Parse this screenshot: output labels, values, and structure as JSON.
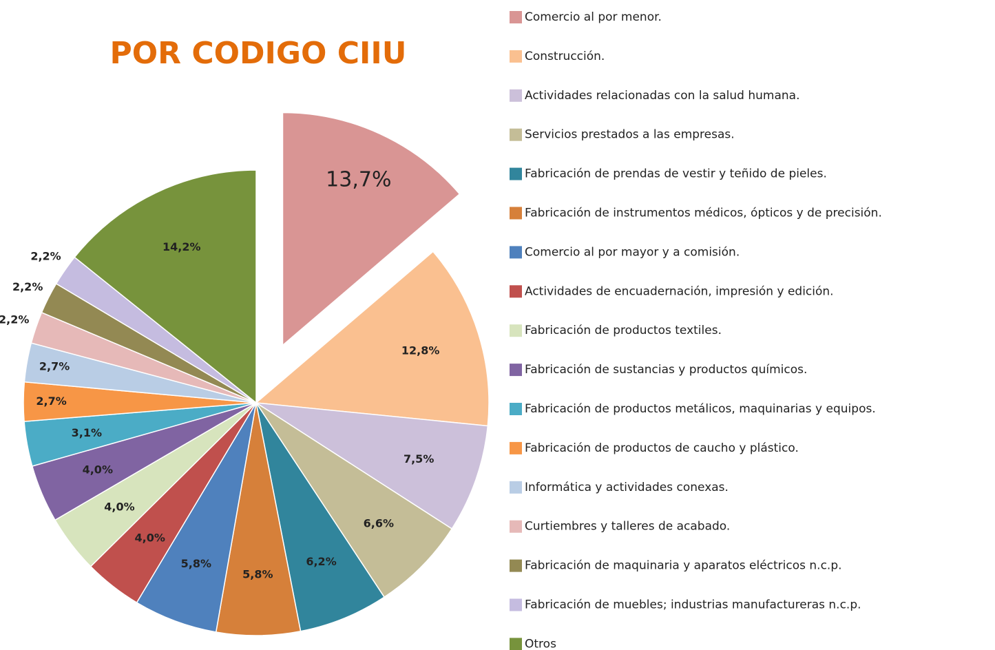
{
  "chart_data": {
    "type": "pie",
    "title": "POR CODIGO CIIU",
    "categories": [
      "Comercio al por menor.",
      "Construcción.",
      "Actividades relacionadas con la salud humana.",
      "Servicios prestados a las empresas.",
      "Fabricación de prendas de vestir y teñido de pieles.",
      "Fabricación de instrumentos médicos, ópticos y de precisión.",
      "Comercio al por mayor y a comisión.",
      "Actividades de encuadernación, impresión y edición.",
      "Fabricación de productos textiles.",
      "Fabricación de sustancias y productos químicos.",
      "Fabricación de productos metálicos, maquinarias y equipos.",
      "Fabricación de productos de caucho y plástico.",
      "Informática y actividades conexas.",
      "Curtiembres y talleres de acabado.",
      "Fabricación de maquinaria y aparatos eléctricos n.c.p.",
      "Fabricación de muebles; industrias manufactureras n.c.p.",
      "Otros"
    ],
    "values": [
      13.7,
      12.8,
      7.5,
      6.6,
      6.2,
      5.8,
      5.8,
      4.0,
      4.0,
      4.0,
      3.1,
      2.7,
      2.7,
      2.2,
      2.2,
      2.2,
      14.2
    ],
    "value_labels": [
      "13,7%",
      "12,8%",
      "7,5%",
      "6,6%",
      "6,2%",
      "5,8%",
      "5,8%",
      "4,0%",
      "4,0%",
      "4,0%",
      "3,1%",
      "2,7%",
      "2,7%",
      "2,2%",
      "2,2%",
      "2,2%",
      "14,2%"
    ],
    "colors": [
      "#d99594",
      "#fac090",
      "#ccc0da",
      "#c4bd97",
      "#31859c",
      "#d6803a",
      "#4f81bd",
      "#c0504d",
      "#d7e4bd",
      "#8064a2",
      "#4bacc6",
      "#f79646",
      "#b9cde5",
      "#e6b9b8",
      "#938953",
      "#c5bce0",
      "#77933c"
    ]
  }
}
